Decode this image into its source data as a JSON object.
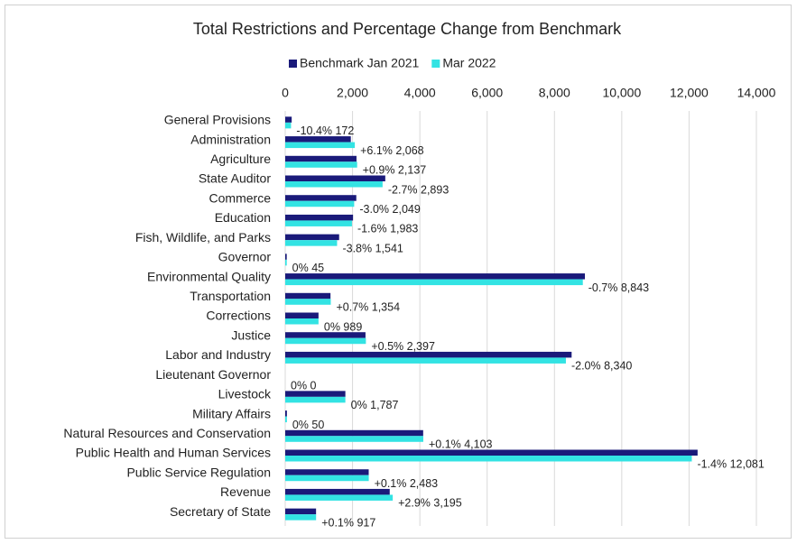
{
  "chart_data": {
    "type": "bar",
    "orientation": "horizontal",
    "title": "Total Restrictions and Percentage Change from Benchmark",
    "categories": [
      "General Provisions",
      "Administration",
      "Agriculture",
      "State Auditor",
      "Commerce",
      "Education",
      "Fish, Wildlife, and Parks",
      "Governor",
      "Environmental Quality",
      "Transportation",
      "Corrections",
      "Justice",
      "Labor and Industry",
      "Lieutenant Governor",
      "Livestock",
      "Military Affairs",
      "Natural Resources and Conservation",
      "Public Health and Human Services",
      "Public Service Regulation",
      "Revenue",
      "Secretary of State"
    ],
    "series": [
      {
        "name": "Benchmark Jan 2021",
        "color": "#1a1a7a",
        "values": [
          192,
          1949,
          2118,
          2973,
          2112,
          2015,
          1602,
          45,
          8905,
          1345,
          989,
          2385,
          8510,
          0,
          1787,
          50,
          4099,
          12253,
          2481,
          3105,
          916
        ]
      },
      {
        "name": "Mar 2022",
        "color": "#33e3e3",
        "values": [
          172,
          2068,
          2137,
          2893,
          2049,
          1983,
          1541,
          45,
          8843,
          1354,
          989,
          2397,
          8340,
          0,
          1787,
          50,
          4103,
          12081,
          2483,
          3195,
          917
        ],
        "value_labels": [
          "-10.4% 172",
          "+6.1% 2,068",
          "+0.9% 2,137",
          "-2.7% 2,893",
          "-3.0% 2,049",
          "-1.6% 1,983",
          "-3.8% 1,541",
          "0% 45",
          "-0.7% 8,843",
          "+0.7% 1,354",
          "0% 989",
          "+0.5% 2,397",
          "-2.0% 8,340",
          "0% 0",
          "0% 1,787",
          "0% 50",
          "+0.1% 4,103",
          "-1.4% 12,081",
          "+0.1% 2,483",
          "+2.9% 3,195",
          "+0.1% 917"
        ]
      }
    ],
    "xlim": [
      0,
      14000
    ],
    "xticks": [
      0,
      {
        "value": 2000,
        "label": "2,000"
      },
      {
        "value": 4000,
        "label": "4,000"
      },
      {
        "value": 6000,
        "label": "6,000"
      },
      {
        "value": 8000,
        "label": "8,000"
      },
      {
        "value": 10000,
        "label": "10,000"
      },
      {
        "value": 12000,
        "label": "12,000"
      },
      {
        "value": 14000,
        "label": "14,000"
      }
    ],
    "grid": true,
    "legend": "top"
  }
}
